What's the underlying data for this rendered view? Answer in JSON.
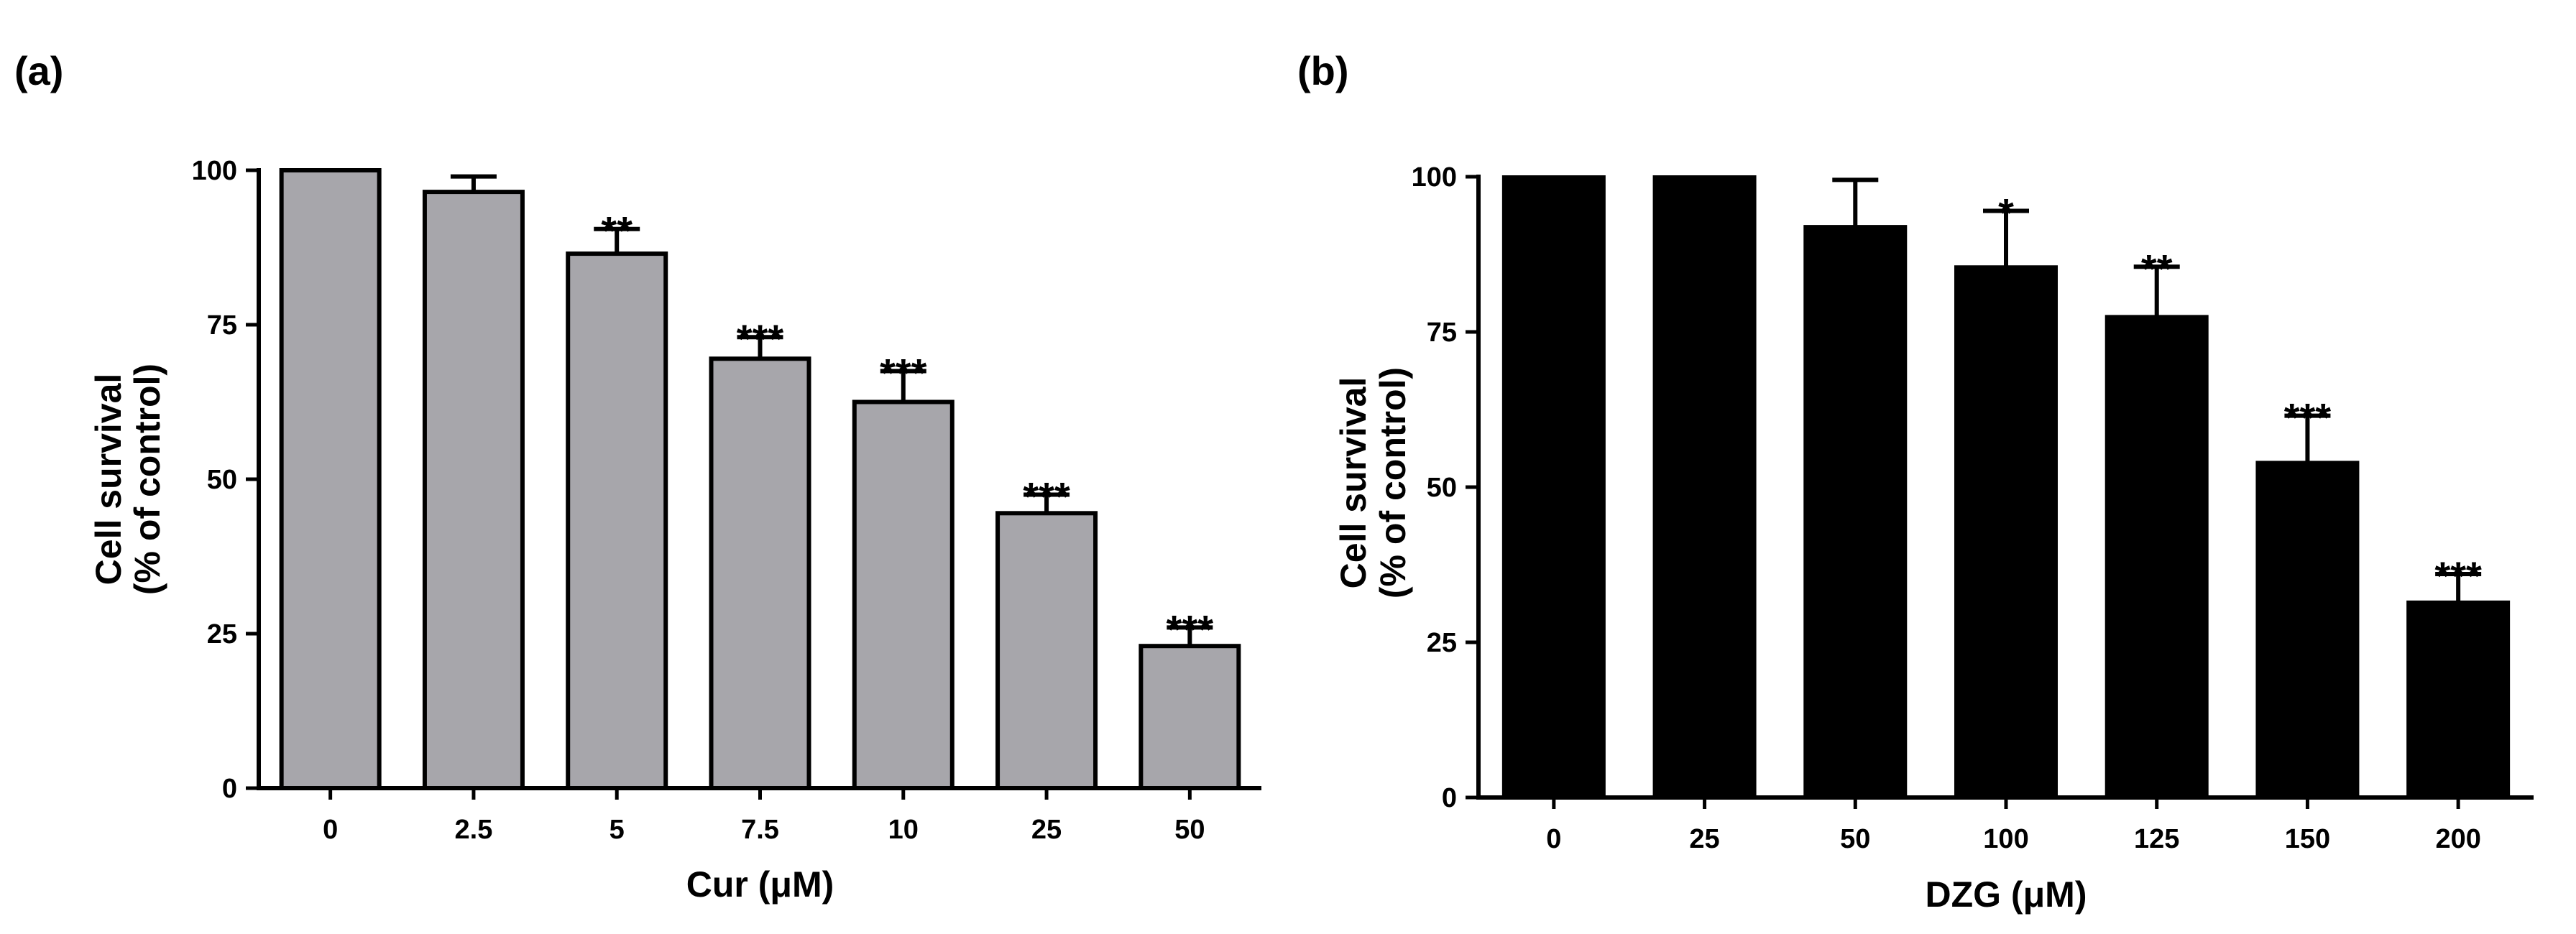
{
  "colors": {
    "bar_a": "#a7a6ab",
    "bar_b": "#000000",
    "axis": "#000000"
  },
  "chart_data": [
    {
      "panel": "(a)",
      "type": "bar",
      "categories": [
        "0",
        "2.5",
        "5",
        "7.5",
        "10",
        "25",
        "50"
      ],
      "values": [
        100,
        96.5,
        86.5,
        69.5,
        62.5,
        44.5,
        23
      ],
      "errors": [
        0,
        2.5,
        4,
        3.5,
        5,
        3,
        3
      ],
      "significance": [
        "",
        "",
        "**",
        "***",
        "***",
        "***",
        "***"
      ],
      "xlabel": "Cur (μM)",
      "ylabel_line1": "Cell survival",
      "ylabel_line2": "(% of control)",
      "ylim": [
        0,
        100
      ],
      "yticks": [
        0,
        25,
        50,
        75,
        100
      ],
      "ytick_labels": [
        "0",
        "25",
        "50",
        "75",
        "100"
      ]
    },
    {
      "panel": "(b)",
      "type": "bar",
      "categories": [
        "0",
        "25",
        "50",
        "100",
        "125",
        "150",
        "200"
      ],
      "values": [
        100,
        100,
        92,
        85.5,
        77.5,
        54,
        31.5
      ],
      "errors": [
        0,
        0,
        7.5,
        9,
        8,
        7.5,
        4.5
      ],
      "significance": [
        "",
        "",
        "",
        "*",
        "**",
        "***",
        "***"
      ],
      "xlabel": "DZG (μM)",
      "ylabel_line1": "Cell survival",
      "ylabel_line2": "(% of control)",
      "ylim": [
        0,
        100
      ],
      "yticks": [
        0,
        25,
        50,
        75,
        100
      ],
      "ytick_labels": [
        "0",
        "25",
        "50",
        "75",
        "100"
      ]
    }
  ]
}
